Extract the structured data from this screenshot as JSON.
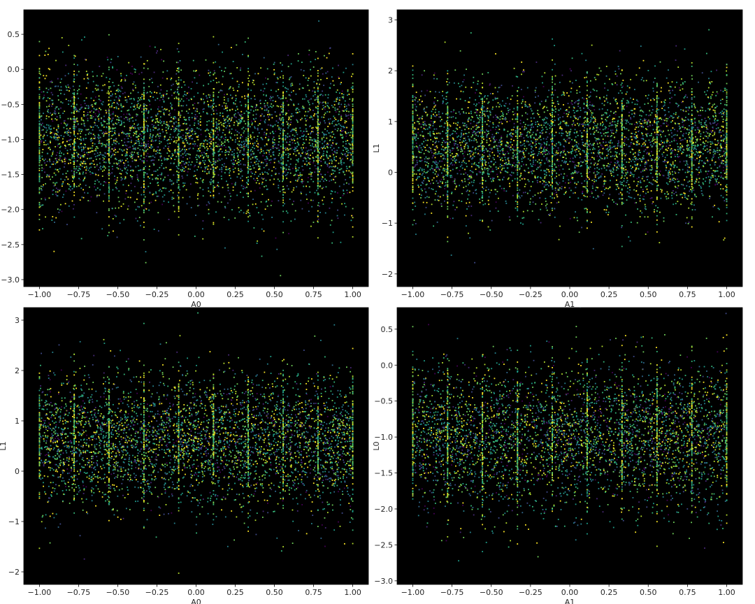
{
  "figure": {
    "colormap": "viridis",
    "axes_facecolor": "#000000",
    "figure_facecolor": "#ffffff"
  },
  "chart_data": [
    {
      "type": "scatter",
      "title": "",
      "xlabel": "A0",
      "ylabel": "",
      "xlim": [
        -1.1,
        1.1
      ],
      "ylim": [
        -3.1,
        0.85
      ],
      "xticks": [
        -1.0,
        -0.75,
        -0.5,
        -0.25,
        0.0,
        0.25,
        0.5,
        0.75,
        1.0
      ],
      "xtick_labels": [
        "−1.00",
        "−0.75",
        "−0.50",
        "−0.25",
        "0.00",
        "0.25",
        "0.50",
        "0.75",
        "1.00"
      ],
      "yticks": [
        0.5,
        0.0,
        -0.5,
        -1.0,
        -1.5,
        -2.0,
        -2.5,
        -3.0
      ],
      "ytick_labels": [
        "0.5",
        "0.0",
        "−0.5",
        "−1.0",
        "−1.5",
        "−2.0",
        "−2.5",
        "−3.0"
      ],
      "x_levels": [
        -1.0,
        -0.778,
        -0.556,
        -0.333,
        -0.111,
        0.111,
        0.333,
        0.556,
        0.778,
        1.0
      ],
      "y_mean": -1.0,
      "y_sd": 0.5,
      "point_count": 5000,
      "color_scale": "viridis",
      "grid": false,
      "legend": "none"
    },
    {
      "type": "scatter",
      "title": "",
      "xlabel": "A1",
      "ylabel": "L1",
      "xlim": [
        -1.1,
        1.1
      ],
      "ylim": [
        -2.25,
        3.2
      ],
      "xticks": [
        -1.0,
        -0.75,
        -0.5,
        -0.25,
        0.0,
        0.25,
        0.5,
        0.75,
        1.0
      ],
      "xtick_labels": [
        "−1.00",
        "−0.75",
        "−0.50",
        "−0.25",
        "0.00",
        "0.25",
        "0.50",
        "0.75",
        "1.00"
      ],
      "yticks": [
        3,
        2,
        1,
        0,
        -1,
        -2
      ],
      "ytick_labels": [
        "3",
        "2",
        "1",
        "0",
        "−1",
        "−2"
      ],
      "x_levels": [
        -1.0,
        -0.778,
        -0.556,
        -0.333,
        -0.111,
        0.111,
        0.333,
        0.556,
        0.778,
        1.0
      ],
      "y_mean": 0.5,
      "y_sd": 0.65,
      "point_count": 5000,
      "color_scale": "viridis",
      "grid": false,
      "legend": "none"
    },
    {
      "type": "scatter",
      "title": "",
      "xlabel": "A0",
      "ylabel": "L1",
      "xlim": [
        -1.1,
        1.1
      ],
      "ylim": [
        -2.25,
        3.25
      ],
      "xticks": [
        -1.0,
        -0.75,
        -0.5,
        -0.25,
        0.0,
        0.25,
        0.5,
        0.75,
        1.0
      ],
      "xtick_labels": [
        "−1.00",
        "−0.75",
        "−0.50",
        "−0.25",
        "0.00",
        "0.25",
        "0.50",
        "0.75",
        "1.00"
      ],
      "yticks": [
        3,
        2,
        1,
        0,
        -1,
        -2
      ],
      "ytick_labels": [
        "3",
        "2",
        "1",
        "0",
        "−1",
        "−2"
      ],
      "x_levels": [
        -1.0,
        -0.778,
        -0.556,
        -0.333,
        -0.111,
        0.111,
        0.333,
        0.556,
        0.778,
        1.0
      ],
      "y_mean": 0.6,
      "y_sd": 0.65,
      "point_count": 5000,
      "color_scale": "viridis",
      "grid": false,
      "legend": "none"
    },
    {
      "type": "scatter",
      "title": "",
      "xlabel": "A1",
      "ylabel": "L0",
      "xlim": [
        -1.1,
        1.1
      ],
      "ylim": [
        -3.05,
        0.8
      ],
      "xticks": [
        -1.0,
        -0.75,
        -0.5,
        -0.25,
        0.0,
        0.25,
        0.5,
        0.75,
        1.0
      ],
      "xtick_labels": [
        "−1.00",
        "−0.75",
        "−0.50",
        "−0.25",
        "0.00",
        "0.25",
        "0.50",
        "0.75",
        "1.00"
      ],
      "yticks": [
        0.5,
        0.0,
        -0.5,
        -1.0,
        -1.5,
        -2.0,
        -2.5,
        -3.0
      ],
      "ytick_labels": [
        "0.5",
        "0.0",
        "−0.5",
        "−1.0",
        "−1.5",
        "−2.0",
        "−2.5",
        "−3.0"
      ],
      "x_levels": [
        -1.0,
        -0.778,
        -0.556,
        -0.333,
        -0.111,
        0.111,
        0.333,
        0.556,
        0.778,
        1.0
      ],
      "y_mean": -1.0,
      "y_sd": 0.5,
      "point_count": 5000,
      "color_scale": "viridis",
      "grid": false,
      "legend": "none"
    }
  ]
}
